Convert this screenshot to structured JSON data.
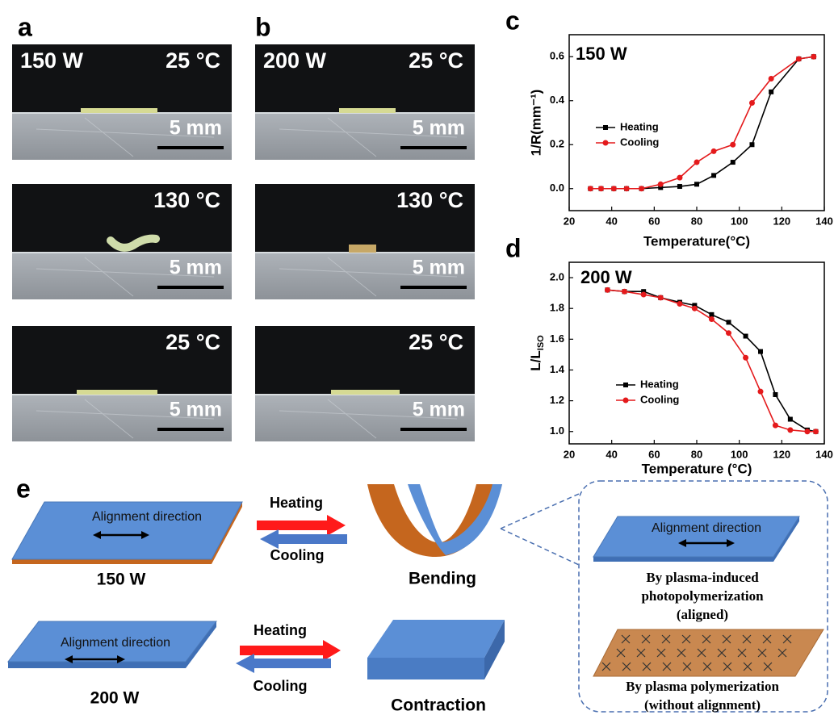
{
  "panel_labels": [
    "a",
    "b",
    "c",
    "d",
    "e"
  ],
  "photos": {
    "a": [
      {
        "power": "150 W",
        "temp": "25 °C",
        "scale": "5 mm"
      },
      {
        "temp": "130 °C",
        "scale": "5 mm"
      },
      {
        "temp": "25 °C",
        "scale": "5 mm"
      }
    ],
    "b": [
      {
        "power": "200 W",
        "temp": "25 °C",
        "scale": "5 mm"
      },
      {
        "temp": "130 °C",
        "scale": "5 mm"
      },
      {
        "temp": "25 °C",
        "scale": "5 mm"
      }
    ]
  },
  "chart_data": [
    {
      "type": "line",
      "label": "150 W",
      "x_label": "Temperature(°C)",
      "y_label": "1/R(mm⁻¹)",
      "xlim": [
        20,
        140
      ],
      "xticks": [
        20,
        40,
        60,
        80,
        100,
        120,
        140
      ],
      "ylim": [
        -0.1,
        0.7
      ],
      "yticks": [
        {
          "value": 0,
          "label": "0.0"
        },
        0.2,
        0.4,
        0.6
      ],
      "series": [
        {
          "name": "Heating",
          "color": "#000000",
          "marker": "square",
          "x": [
            30,
            35,
            41,
            47,
            54,
            63,
            72,
            80,
            88,
            97,
            106,
            115,
            128,
            135
          ],
          "values": [
            0,
            0,
            0,
            0,
            0,
            0.005,
            0.01,
            0.02,
            0.06,
            0.12,
            0.2,
            0.44,
            0.59,
            0.6
          ]
        },
        {
          "name": "Cooling",
          "color": "#e41a1c",
          "marker": "circle",
          "x": [
            30,
            35,
            41,
            47,
            54,
            63,
            72,
            80,
            88,
            97,
            106,
            115,
            128,
            135
          ],
          "values": [
            0,
            0,
            0,
            0,
            0,
            0.02,
            0.05,
            0.12,
            0.17,
            0.2,
            0.39,
            0.5,
            0.59,
            0.6
          ]
        }
      ]
    },
    {
      "type": "line",
      "label": "200 W",
      "x_label": "Temperature (°C)",
      "y_label": "L/L",
      "y_label_sub": "ISO",
      "xlim": [
        20,
        140
      ],
      "xticks": [
        20,
        40,
        60,
        80,
        100,
        120,
        140
      ],
      "ylim": [
        0.92,
        2.1
      ],
      "yticks": [
        {
          "value": 1,
          "label": "1.0"
        },
        1.2,
        1.4,
        1.6,
        1.8,
        {
          "value": 2,
          "label": "2.0"
        }
      ],
      "series": [
        {
          "name": "Heating",
          "color": "#000000",
          "marker": "square",
          "x": [
            38,
            46,
            55,
            63,
            72,
            79,
            87,
            95,
            103,
            110,
            117,
            124,
            132,
            136
          ],
          "values": [
            1.92,
            1.91,
            1.91,
            1.87,
            1.84,
            1.82,
            1.76,
            1.71,
            1.62,
            1.52,
            1.24,
            1.08,
            1.01,
            1.0
          ]
        },
        {
          "name": "Cooling",
          "color": "#e41a1c",
          "marker": "circle",
          "x": [
            38,
            46,
            55,
            63,
            72,
            79,
            87,
            95,
            103,
            110,
            117,
            124,
            132,
            136
          ],
          "values": [
            1.92,
            1.91,
            1.89,
            1.87,
            1.83,
            1.8,
            1.73,
            1.64,
            1.48,
            1.26,
            1.04,
            1.01,
            1.0,
            1.0
          ]
        }
      ]
    }
  ],
  "schematic": {
    "top": {
      "alignment": "Alignment direction",
      "power": "150 W",
      "heating": "Heating",
      "cooling": "Cooling",
      "result": "Bending"
    },
    "bottom": {
      "alignment": "Alignment direction",
      "power": "200 W",
      "heating": "Heating",
      "cooling": "Cooling",
      "result": "Contraction"
    },
    "callout": {
      "alignment": "Alignment direction",
      "aligned_caption": [
        "By plasma-induced",
        "photopolymerization",
        "(aligned)"
      ],
      "unaligned_caption": [
        "By plasma polymerization",
        "(without alignment)"
      ]
    }
  }
}
